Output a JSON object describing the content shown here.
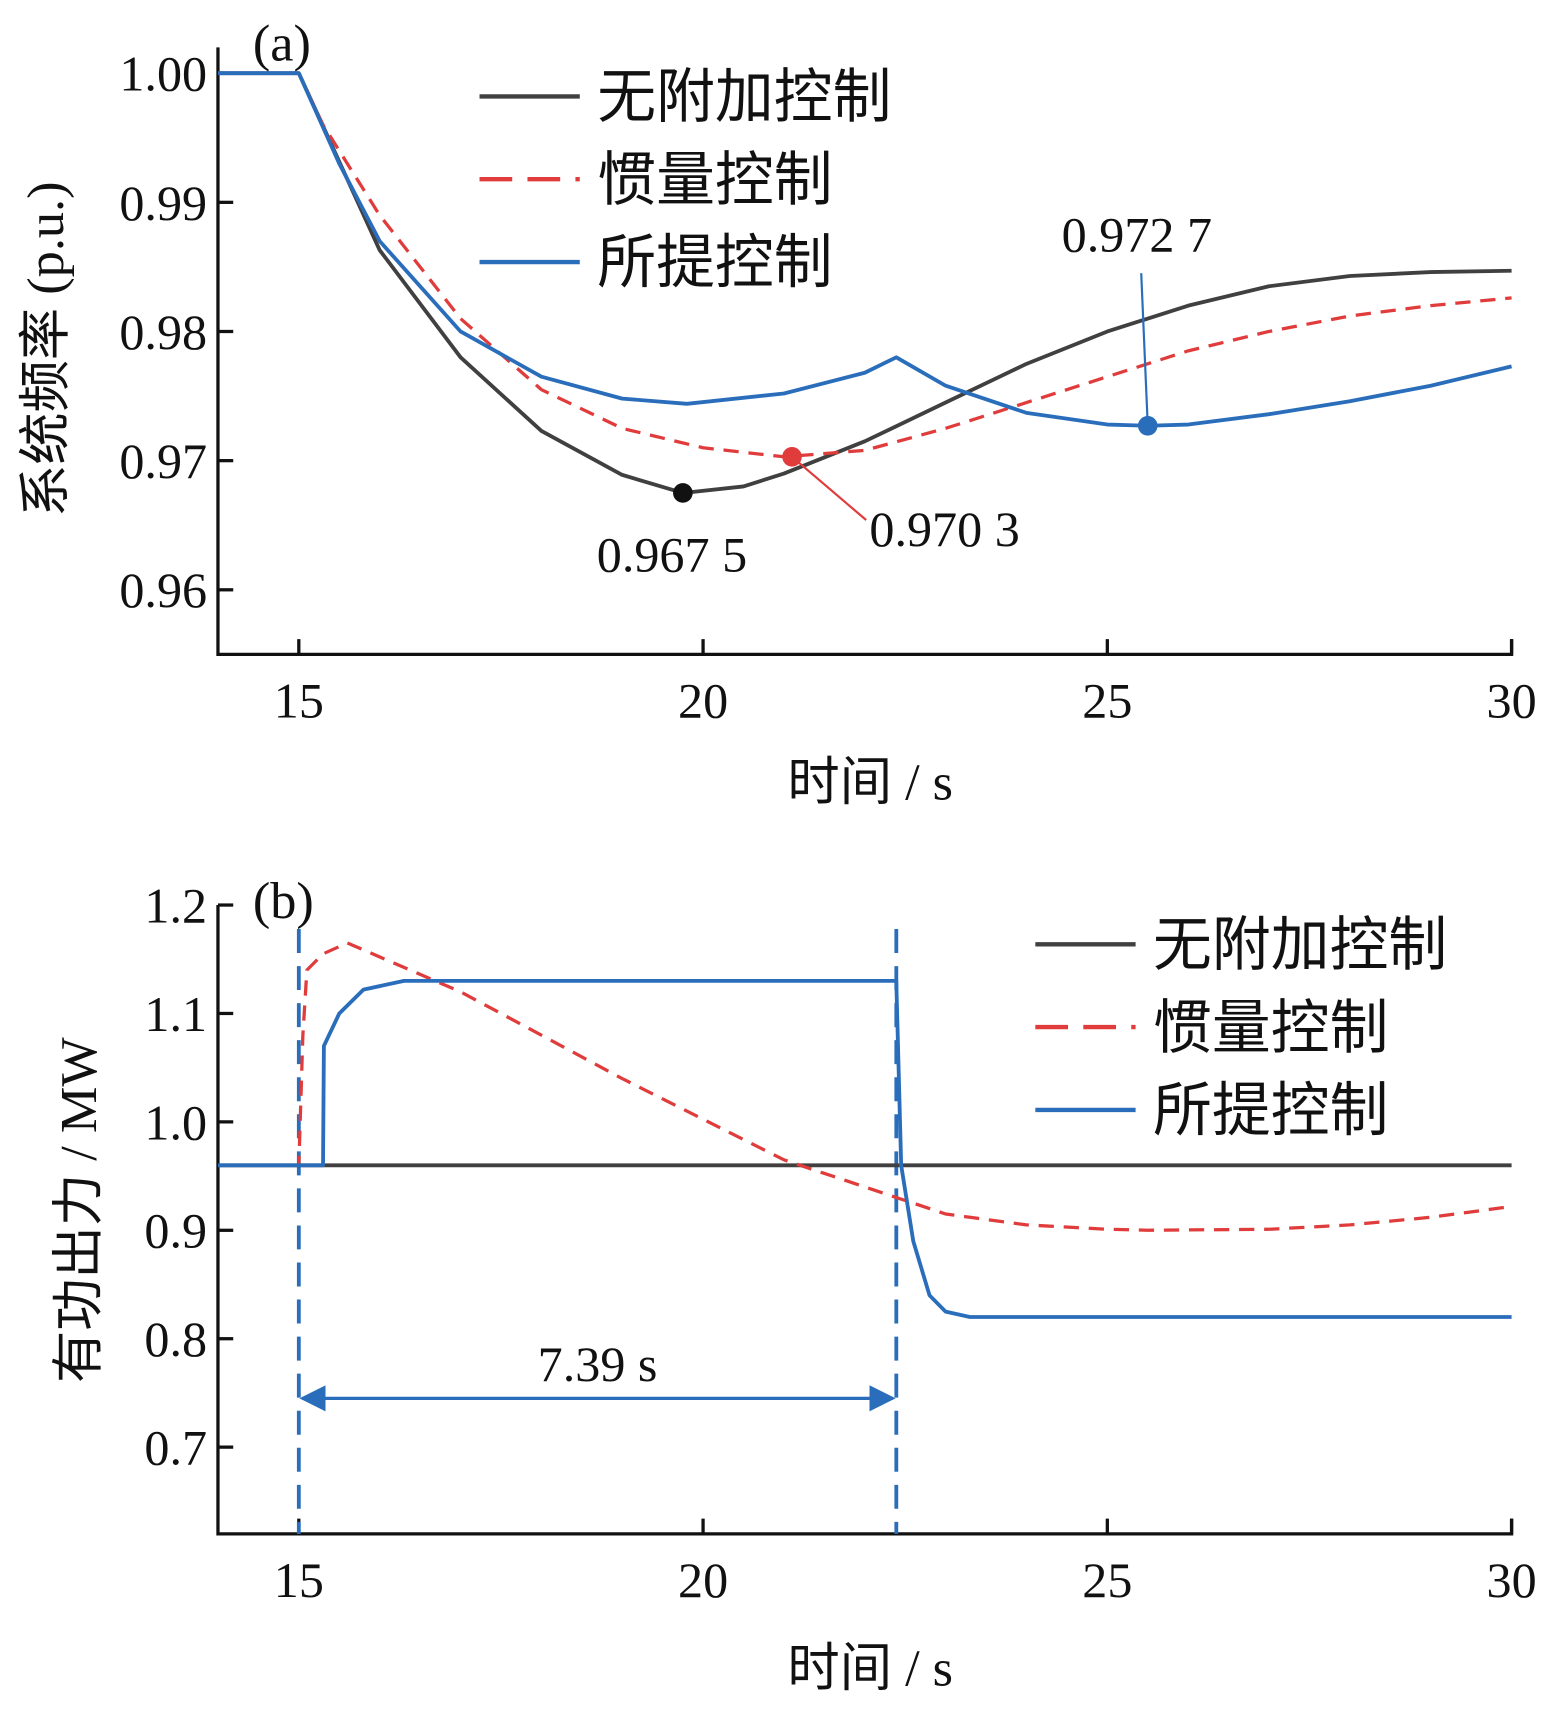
{
  "chart_data": [
    {
      "type": "line",
      "panel_label": "(a)",
      "xlabel": "时间 / s",
      "ylabel": "系统频率 (p.u.)",
      "xlim": [
        14,
        30
      ],
      "ylim": [
        0.955,
        1.002
      ],
      "xticks": [
        15,
        20,
        25,
        30
      ],
      "xtick_labels": [
        "15",
        "20",
        "25",
        "30"
      ],
      "yticks": [
        1.0,
        0.99,
        0.98,
        0.97,
        0.96
      ],
      "ytick_labels": [
        "1.00",
        "0.99",
        "0.98",
        "0.97",
        "0.96"
      ],
      "legend_position": "top-center",
      "series": [
        {
          "name": "无附加控制",
          "color": "#404040",
          "dash": false,
          "x": [
            14,
            15,
            16,
            17,
            18,
            19,
            19.75,
            20.5,
            21,
            22,
            23,
            24,
            25,
            26,
            27,
            28,
            29,
            30
          ],
          "y": [
            1.0,
            1.0,
            0.9863,
            0.978,
            0.9723,
            0.9689,
            0.9675,
            0.968,
            0.969,
            0.9715,
            0.9745,
            0.9775,
            0.98,
            0.982,
            0.9835,
            0.9843,
            0.9846,
            0.9847
          ]
        },
        {
          "name": "惯量控制",
          "color": "#e03c3c",
          "dash": true,
          "x": [
            14,
            15,
            15.3,
            16,
            17,
            18,
            19,
            20,
            21,
            22,
            23,
            24,
            25,
            26,
            27,
            28,
            29,
            30
          ],
          "y": [
            1.0,
            1.0,
            0.996,
            0.989,
            0.981,
            0.9755,
            0.9725,
            0.971,
            0.9703,
            0.9708,
            0.9725,
            0.9745,
            0.9765,
            0.9785,
            0.98,
            0.9812,
            0.982,
            0.9826
          ]
        },
        {
          "name": "所提控制",
          "color": "#2a6ebb",
          "dash": false,
          "x": [
            14,
            15,
            15.5,
            16,
            17,
            18,
            19,
            19.8,
            21,
            22,
            22.39,
            23,
            24,
            25,
            25.5,
            26,
            27,
            28,
            29,
            30
          ],
          "y": [
            1.0,
            1.0,
            0.993,
            0.987,
            0.98,
            0.9765,
            0.9748,
            0.9744,
            0.9752,
            0.9768,
            0.978,
            0.9758,
            0.9737,
            0.9728,
            0.9727,
            0.9728,
            0.9736,
            0.9746,
            0.9758,
            0.9773
          ]
        }
      ],
      "annotations": [
        {
          "text": "0.967 5",
          "x": 19.75,
          "y": 0.9675,
          "color": "#111111"
        },
        {
          "text": "0.970 3",
          "x": 21.1,
          "y": 0.9703,
          "color": "#e03c3c"
        },
        {
          "text": "0.972 7",
          "x": 25.5,
          "y": 0.9727,
          "color": "#2a6ebb"
        }
      ]
    },
    {
      "type": "line",
      "panel_label": "(b)",
      "xlabel": "时间 / s",
      "ylabel": "有功出力 / MW",
      "xlim": [
        14,
        30
      ],
      "ylim": [
        0.62,
        1.2
      ],
      "xticks": [
        15,
        20,
        25,
        30
      ],
      "xtick_labels": [
        "15",
        "20",
        "25",
        "30"
      ],
      "yticks": [
        1.2,
        1.1,
        1.0,
        0.9,
        0.8,
        0.7
      ],
      "ytick_labels": [
        "1.2",
        "1.1",
        "1.0",
        "0.9",
        "0.8",
        "0.7"
      ],
      "legend_position": "top-right",
      "series": [
        {
          "name": "无附加控制",
          "color": "#404040",
          "dash": false,
          "x": [
            14,
            30
          ],
          "y": [
            0.96,
            0.96
          ]
        },
        {
          "name": "惯量控制",
          "color": "#e03c3c",
          "dash": true,
          "x": [
            14,
            15,
            15.05,
            15.1,
            15.3,
            15.6,
            17,
            19,
            21,
            22.4,
            23,
            24,
            25,
            25.5,
            27,
            28,
            29,
            30
          ],
          "y": [
            0.96,
            0.96,
            1.08,
            1.14,
            1.155,
            1.165,
            1.12,
            1.04,
            0.965,
            0.93,
            0.915,
            0.905,
            0.901,
            0.9,
            0.901,
            0.905,
            0.912,
            0.922
          ]
        },
        {
          "name": "所提控制",
          "color": "#2a6ebb",
          "dash": false,
          "x": [
            14,
            15.3,
            15.31,
            15.5,
            15.8,
            16.3,
            17,
            22.39,
            22.45,
            22.6,
            22.8,
            23.0,
            23.3,
            24,
            30
          ],
          "y": [
            0.96,
            0.96,
            1.07,
            1.1,
            1.122,
            1.13,
            1.13,
            1.13,
            0.96,
            0.89,
            0.84,
            0.825,
            0.82,
            0.82,
            0.82
          ]
        }
      ],
      "markers": {
        "vlines": [
          15,
          22.39
        ],
        "vline_color": "#2a6ebb",
        "interval_label": "7.39 s"
      }
    }
  ]
}
